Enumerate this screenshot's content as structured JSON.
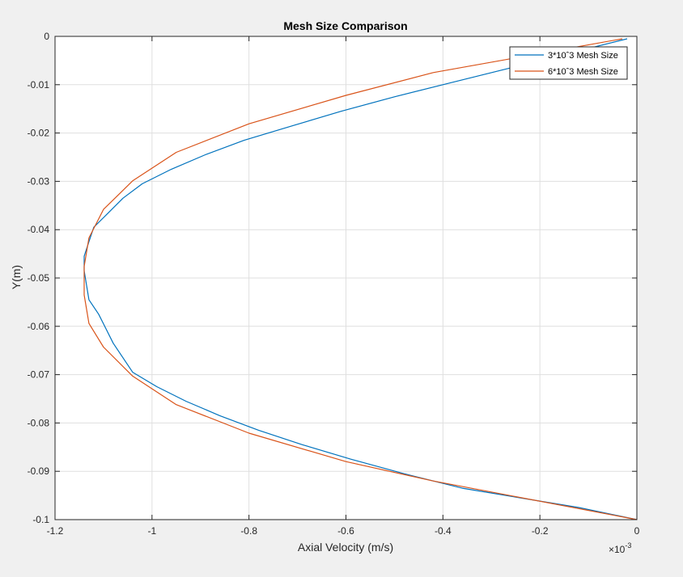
{
  "chart_data": {
    "type": "line",
    "title": "Mesh Size Comparison",
    "xlabel": "Axial Velocity (m/s)",
    "ylabel": "Y(m)",
    "x_scale_label": "×10",
    "x_scale_exponent": "-3",
    "xlim": [
      -1.2,
      0
    ],
    "ylim": [
      -0.1,
      0
    ],
    "xticks": [
      -1.2,
      -1,
      -0.8,
      -0.6,
      -0.4,
      -0.2,
      0
    ],
    "xtick_labels": [
      "-1.2",
      "-1",
      "-0.8",
      "-0.6",
      "-0.4",
      "-0.2",
      "0"
    ],
    "yticks": [
      0,
      -0.01,
      -0.02,
      -0.03,
      -0.04,
      -0.05,
      -0.06,
      -0.07,
      -0.08,
      -0.09,
      -0.1
    ],
    "ytick_labels": [
      "0",
      "-0.01",
      "-0.02",
      "-0.03",
      "-0.04",
      "-0.05",
      "-0.06",
      "-0.07",
      "-0.08",
      "-0.09",
      "-0.1"
    ],
    "grid": true,
    "legend_position": "top-right",
    "series": [
      {
        "name": "3*10ˆ3 Mesh Size",
        "color": "#0072bd",
        "x": [
          -0.02,
          -0.14,
          -0.26,
          -0.38,
          -0.5,
          -0.61,
          -0.71,
          -0.81,
          -0.89,
          -0.96,
          -1.02,
          -1.06,
          -1.09,
          -1.12,
          -1.13,
          -1.14,
          -1.14,
          -1.13,
          -1.11,
          -1.08,
          -1.04,
          -0.99,
          -0.93,
          -0.86,
          -0.78,
          -0.69,
          -0.59,
          -0.48,
          -0.36,
          -0.24,
          -0.12,
          0
        ],
        "y": [
          -0.0005,
          -0.0035,
          -0.0065,
          -0.0095,
          -0.0125,
          -0.0155,
          -0.0185,
          -0.0215,
          -0.0245,
          -0.0275,
          -0.0305,
          -0.0335,
          -0.0365,
          -0.0395,
          -0.0425,
          -0.0455,
          -0.0485,
          -0.0545,
          -0.0575,
          -0.0635,
          -0.0695,
          -0.0725,
          -0.0755,
          -0.0785,
          -0.0815,
          -0.0845,
          -0.0875,
          -0.0905,
          -0.0935,
          -0.0955,
          -0.0975,
          -0.1
        ]
      },
      {
        "name": "6*10ˆ3 Mesh Size",
        "color": "#d95319",
        "x": [
          -0.03,
          -0.42,
          -0.6,
          -0.8,
          -0.95,
          -1.04,
          -1.1,
          -1.13,
          -1.14,
          -1.14,
          -1.13,
          -1.1,
          -1.04,
          -0.95,
          -0.8,
          -0.6,
          -0.42,
          0
        ],
        "y": [
          -0.0005,
          -0.0075,
          -0.0122,
          -0.0181,
          -0.024,
          -0.0299,
          -0.0358,
          -0.0417,
          -0.0476,
          -0.0535,
          -0.0594,
          -0.0643,
          -0.0703,
          -0.0762,
          -0.0821,
          -0.088,
          -0.092,
          -0.1
        ]
      }
    ]
  }
}
